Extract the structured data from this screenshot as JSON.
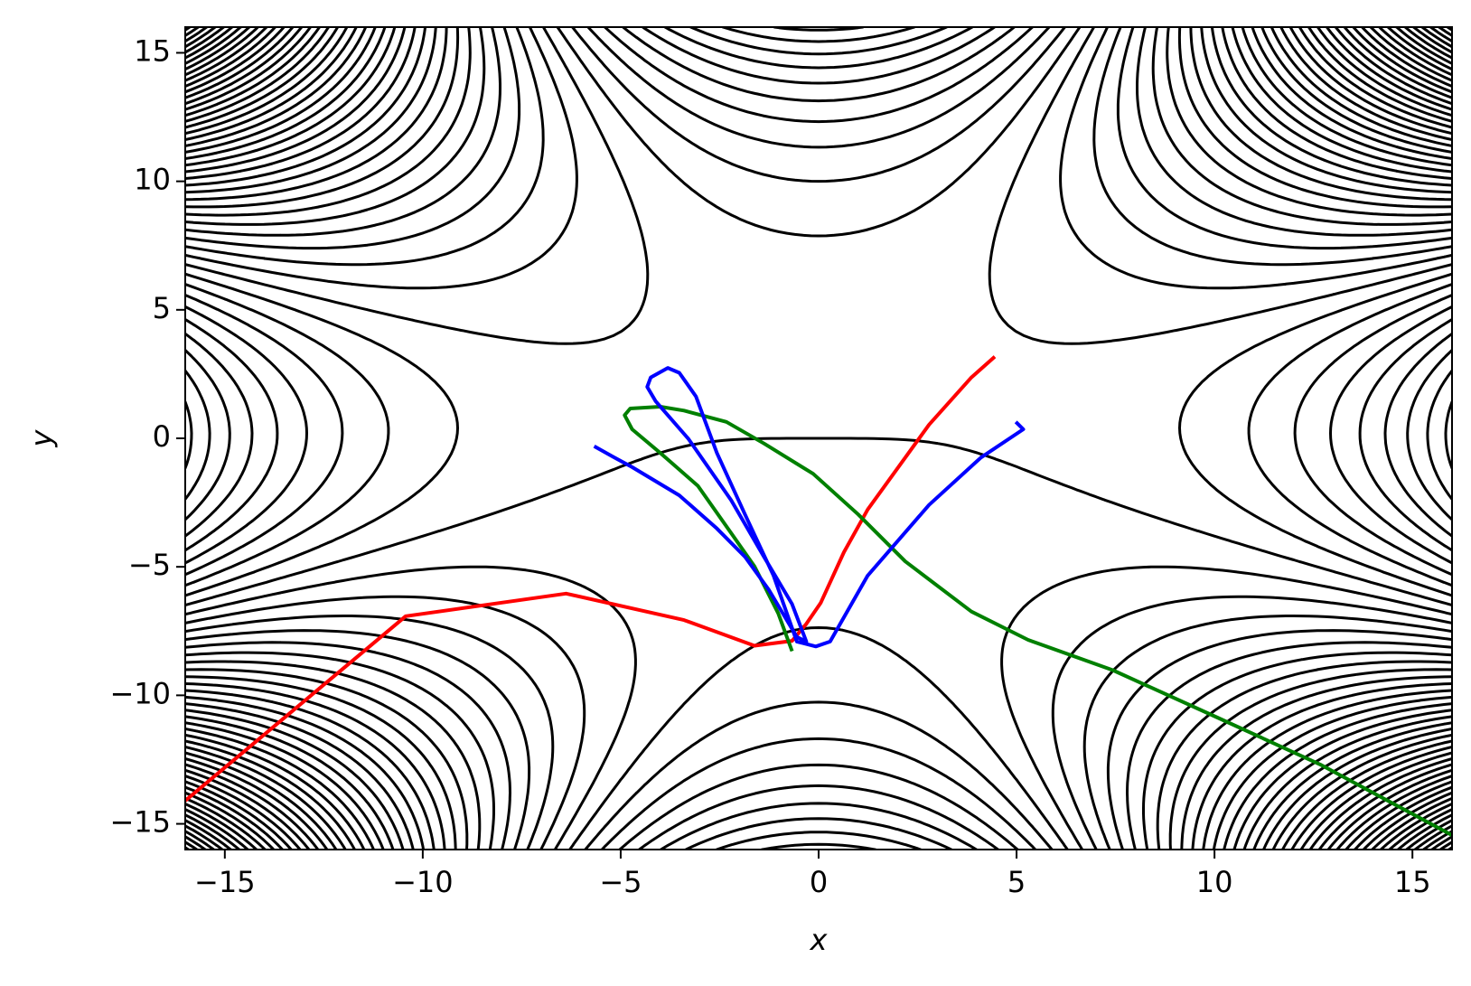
{
  "chart_data": {
    "type": "line",
    "xlabel": "x",
    "ylabel": "y",
    "xlim": [
      -16,
      16
    ],
    "ylim": [
      -16,
      16
    ],
    "xticks": [
      {
        "value": -15,
        "label": "−15"
      },
      {
        "value": -10,
        "label": "−10"
      },
      {
        "value": -5,
        "label": "−5"
      },
      0,
      5,
      10,
      15
    ],
    "yticks": [
      {
        "value": -15,
        "label": "−15"
      },
      {
        "value": -10,
        "label": "−10"
      },
      {
        "value": -5,
        "label": "−5"
      },
      0,
      5,
      10,
      15
    ],
    "series": [
      {
        "color": "#ff0000",
        "x": [
          4.45,
          3.86,
          2.79,
          2.19,
          1.24,
          0.64,
          0.05,
          -0.31,
          -0.67,
          -1.62,
          -3.4,
          -6.38,
          -10.43,
          -16
        ],
        "y": [
          3.18,
          2.37,
          0.53,
          -0.75,
          -2.77,
          -4.43,
          -6.41,
          -7.22,
          -7.88,
          -8.07,
          -7.07,
          -6.04,
          -6.92,
          -14.1
        ]
      },
      {
        "color": "#008000",
        "x": [
          -0.67,
          -1.02,
          -1.62,
          -2.21,
          -3.05,
          -4.0,
          -4.71,
          -4.9,
          -4.76,
          -4.0,
          -3.4,
          -2.33,
          -1.38,
          -0.14,
          1.0,
          2.19,
          3.86,
          5.29,
          7.43,
          10.05,
          12.67,
          16
        ],
        "y": [
          -8.28,
          -6.81,
          -4.98,
          -3.69,
          -1.85,
          -0.57,
          0.35,
          0.9,
          1.16,
          1.23,
          1.08,
          0.64,
          -0.2,
          -1.38,
          -2.96,
          -4.79,
          -6.74,
          -7.84,
          -9.02,
          -10.85,
          -12.69,
          -15.44
        ]
      },
      {
        "color": "#0000ff",
        "x": [
          4.98,
          5.17,
          4.1,
          2.79,
          1.24,
          0.29,
          -0.07,
          -0.55,
          -1.14,
          -1.86,
          -2.57,
          -3.1,
          -3.52,
          -3.81,
          -4.24,
          -4.33,
          -4.12,
          -3.29,
          -2.21,
          -1.38,
          -0.67,
          -0.31,
          -0.55,
          -1.26,
          -1.86,
          -2.57,
          -3.52,
          -4.71,
          -5.19,
          -5.67
        ],
        "y": [
          0.64,
          0.35,
          -0.75,
          -2.59,
          -5.34,
          -7.91,
          -8.1,
          -7.91,
          -5.34,
          -2.96,
          -0.57,
          1.63,
          2.55,
          2.74,
          2.37,
          2.0,
          1.45,
          -0.02,
          -2.41,
          -4.61,
          -6.45,
          -7.91,
          -7.73,
          -5.89,
          -4.61,
          -3.51,
          -2.22,
          -1.12,
          -0.72,
          -0.31
        ]
      }
    ]
  }
}
